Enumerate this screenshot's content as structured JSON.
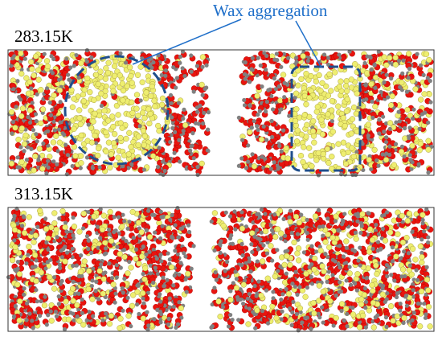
{
  "annotation": "Wax aggregation",
  "panels": [
    {
      "label": "283.15K"
    },
    {
      "label": "313.15K"
    }
  ]
}
